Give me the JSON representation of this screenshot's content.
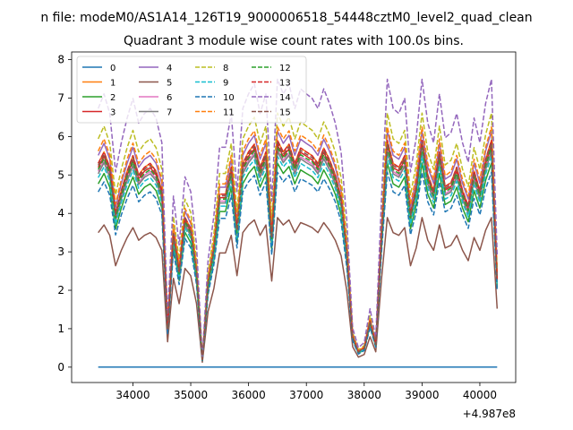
{
  "chart_data": {
    "type": "line",
    "suptitle": "n file: modeM0/AS1A14_126T19_9000006518_54448cztM0_level2_quad_clean",
    "title": "Quadrant 3 module wise count rates with 100.0s bins.",
    "xlabel": "",
    "ylabel": "",
    "x_offset_label": "+4.987e8",
    "xlim": [
      32940,
      40620
    ],
    "ylim": [
      -0.4,
      8.2
    ],
    "x_ticks": [
      34000,
      35000,
      36000,
      37000,
      38000,
      39000,
      40000
    ],
    "x_tick_labels": [
      "34000",
      "35000",
      "36000",
      "37000",
      "38000",
      "39000",
      "40000"
    ],
    "y_ticks": [
      0,
      1,
      2,
      3,
      4,
      5,
      6,
      7,
      8
    ],
    "y_tick_labels": [
      "0",
      "1",
      "2",
      "3",
      "4",
      "5",
      "6",
      "7",
      "8"
    ],
    "x": [
      33400,
      33500,
      33600,
      33700,
      33800,
      33900,
      34000,
      34100,
      34200,
      34300,
      34400,
      34500,
      34600,
      34700,
      34800,
      34900,
      35000,
      35100,
      35200,
      35300,
      35400,
      35500,
      35600,
      35700,
      35800,
      35900,
      36000,
      36100,
      36200,
      36300,
      36400,
      36500,
      36600,
      36700,
      36800,
      36900,
      37000,
      37100,
      37200,
      37300,
      37400,
      37500,
      37600,
      37700,
      37800,
      37900,
      38000,
      38100,
      38200,
      38300,
      38400,
      38500,
      38600,
      38700,
      38800,
      38900,
      39000,
      39100,
      39200,
      39300,
      39400,
      39500,
      39600,
      39700,
      39800,
      39900,
      40000,
      40100,
      40200,
      40300
    ],
    "base_shape": [
      5.3,
      5.6,
      5.2,
      4.0,
      4.6,
      5.1,
      5.5,
      5.0,
      5.2,
      5.3,
      5.1,
      4.6,
      1.0,
      3.5,
      2.5,
      3.9,
      3.6,
      2.5,
      0.2,
      2.2,
      3.1,
      4.5,
      4.5,
      5.2,
      3.6,
      5.3,
      5.6,
      5.8,
      5.2,
      5.6,
      3.4,
      5.9,
      5.6,
      5.8,
      5.3,
      5.7,
      5.6,
      5.5,
      5.3,
      5.7,
      5.4,
      5.0,
      4.4,
      3.0,
      0.8,
      0.4,
      0.5,
      1.2,
      0.6,
      3.5,
      5.9,
      5.3,
      5.2,
      5.5,
      4.0,
      4.7,
      5.9,
      5.0,
      4.6,
      5.6,
      4.7,
      4.8,
      5.2,
      4.6,
      4.2,
      5.1,
      4.6,
      5.4,
      5.9,
      2.3
    ],
    "legend": {
      "location": "upper-left",
      "columns": 4
    },
    "series": [
      {
        "name": "0",
        "color": "#1f77b4",
        "style": "solid",
        "scale": 0,
        "values": [
          0,
          0,
          0,
          0,
          0,
          0,
          0,
          0,
          0,
          0,
          0,
          0,
          0,
          0,
          0,
          0,
          0,
          0,
          0,
          0,
          0,
          0,
          0,
          0,
          0,
          0,
          0,
          0,
          0,
          0,
          0,
          0,
          0,
          0,
          0,
          0,
          0,
          0,
          0,
          0,
          0,
          0,
          0,
          0,
          0,
          0,
          0,
          0,
          0,
          0,
          0,
          0,
          0,
          0,
          0,
          0,
          0,
          0,
          0,
          0,
          0,
          0,
          0,
          0,
          0,
          0,
          0,
          0,
          0,
          0
        ]
      },
      {
        "name": "1",
        "color": "#ff7f0e",
        "style": "solid",
        "scale": 1.0
      },
      {
        "name": "2",
        "color": "#2ca02c",
        "style": "solid",
        "scale": 0.9
      },
      {
        "name": "3",
        "color": "#d62728",
        "style": "solid",
        "scale": 0.98
      },
      {
        "name": "4",
        "color": "#9467bd",
        "style": "solid",
        "scale": 1.04
      },
      {
        "name": "5",
        "color": "#8c564b",
        "style": "solid",
        "scale": 0.66
      },
      {
        "name": "6",
        "color": "#e377c2",
        "style": "solid",
        "scale": 0.96
      },
      {
        "name": "7",
        "color": "#7f7f7f",
        "style": "solid",
        "scale": 0.95
      },
      {
        "name": "8",
        "color": "#bcbd22",
        "style": "dashed",
        "scale": 1.12
      },
      {
        "name": "9",
        "color": "#17becf",
        "style": "dashed",
        "scale": 0.93
      },
      {
        "name": "10",
        "color": "#1f77b4",
        "style": "dashed",
        "scale": 0.86
      },
      {
        "name": "11",
        "color": "#ff7f0e",
        "style": "dashed",
        "scale": 1.06
      },
      {
        "name": "12",
        "color": "#2ca02c",
        "style": "dashed",
        "scale": 0.97
      },
      {
        "name": "13",
        "color": "#d62728",
        "style": "dashed",
        "scale": 1.0
      },
      {
        "name": "14",
        "color": "#9467bd",
        "style": "dashed",
        "scale": 1.27
      },
      {
        "name": "15",
        "color": "#8c564b",
        "style": "dashed",
        "scale": 0.99
      }
    ]
  }
}
